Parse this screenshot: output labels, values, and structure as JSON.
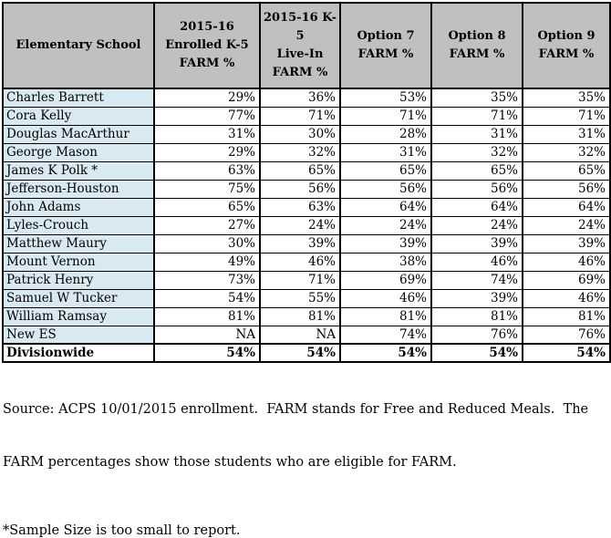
{
  "table": {
    "columns": [
      {
        "id": "school",
        "label": "Elementary School"
      },
      {
        "id": "enrolled",
        "label": "2015-16\nEnrolled K-5\nFARM %"
      },
      {
        "id": "livein",
        "label": "2015-16 K-5\nLive-In\nFARM %"
      },
      {
        "id": "option7",
        "label": "Option 7\nFARM %"
      },
      {
        "id": "option8",
        "label": "Option 8\nFARM %"
      },
      {
        "id": "option9",
        "label": "Option 9\nFARM %"
      }
    ],
    "rows": [
      {
        "name": "Charles Barrett",
        "values": [
          "29%",
          "36%",
          "53%",
          "35%",
          "35%"
        ],
        "is_total": false
      },
      {
        "name": "Cora Kelly",
        "values": [
          "77%",
          "71%",
          "71%",
          "71%",
          "71%"
        ],
        "is_total": false
      },
      {
        "name": "Douglas MacArthur",
        "values": [
          "31%",
          "30%",
          "28%",
          "31%",
          "31%"
        ],
        "is_total": false
      },
      {
        "name": "George Mason",
        "values": [
          "29%",
          "32%",
          "31%",
          "32%",
          "32%"
        ],
        "is_total": false
      },
      {
        "name": "James K Polk *",
        "values": [
          "63%",
          "65%",
          "65%",
          "65%",
          "65%"
        ],
        "is_total": false
      },
      {
        "name": "Jefferson-Houston",
        "values": [
          "75%",
          "56%",
          "56%",
          "56%",
          "56%"
        ],
        "is_total": false
      },
      {
        "name": "John Adams",
        "values": [
          "65%",
          "63%",
          "64%",
          "64%",
          "64%"
        ],
        "is_total": false
      },
      {
        "name": "Lyles-Crouch",
        "values": [
          "27%",
          "24%",
          "24%",
          "24%",
          "24%"
        ],
        "is_total": false
      },
      {
        "name": "Matthew Maury",
        "values": [
          "30%",
          "39%",
          "39%",
          "39%",
          "39%"
        ],
        "is_total": false
      },
      {
        "name": "Mount Vernon",
        "values": [
          "49%",
          "46%",
          "38%",
          "46%",
          "46%"
        ],
        "is_total": false
      },
      {
        "name": "Patrick Henry",
        "values": [
          "73%",
          "71%",
          "69%",
          "74%",
          "69%"
        ],
        "is_total": false
      },
      {
        "name": "Samuel W Tucker",
        "values": [
          "54%",
          "55%",
          "46%",
          "39%",
          "46%"
        ],
        "is_total": false
      },
      {
        "name": "William Ramsay",
        "values": [
          "81%",
          "81%",
          "81%",
          "81%",
          "81%"
        ],
        "is_total": false
      },
      {
        "name": "New ES",
        "values": [
          "NA",
          "NA",
          "74%",
          "76%",
          "76%"
        ],
        "is_total": false
      },
      {
        "name": "Divisionwide",
        "values": [
          "54%",
          "54%",
          "54%",
          "54%",
          "54%"
        ],
        "is_total": true
      }
    ]
  },
  "footer": {
    "source_lines": [
      "Source: ACPS 10/01/2015 enrollment.  FARM stands for Free and Reduced Meals.  The",
      "FARM percentages show those students who are eligible for FARM."
    ],
    "footnote": "*Sample Size is too small to report."
  },
  "colors": {
    "header_bg": "#c0c0c0",
    "school_column_bg": "#d8e9f2",
    "border": "#000000",
    "row_bg": "#ffffff"
  }
}
